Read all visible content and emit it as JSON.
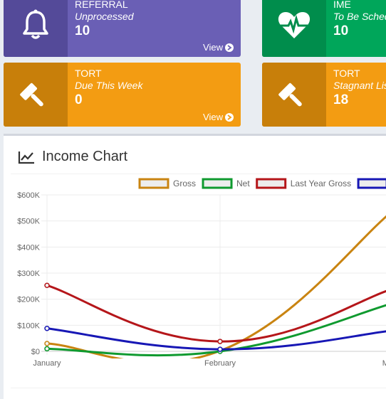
{
  "tiles": [
    {
      "category": "REFERRAL",
      "subtitle": "Unprocessed",
      "count": "10",
      "view_label": "View",
      "bg": "#6a5fb5",
      "icon_bg": "#544a99",
      "icon": "bell-icon"
    },
    {
      "category": "IME",
      "subtitle": "To Be Scheduled",
      "count": "10",
      "view_label": "View",
      "bg": "#00a65a",
      "icon_bg": "#008d4c",
      "icon": "heartbeat-icon"
    },
    {
      "category": "TORT",
      "subtitle": "Due This Week",
      "count": "0",
      "view_label": "View",
      "bg": "#f39c12",
      "icon_bg": "#c87f0a",
      "icon": "gavel-icon"
    },
    {
      "category": "TORT",
      "subtitle": "Stagnant List",
      "count": "18",
      "view_label": "View",
      "bg": "#f39c12",
      "icon_bg": "#c87f0a",
      "icon": "gavel-icon"
    }
  ],
  "panel": {
    "title": "Income Chart",
    "icon": "line-chart-icon"
  },
  "chart_data": {
    "type": "line",
    "categories": [
      "January",
      "February",
      "March"
    ],
    "ylim": [
      0,
      600000
    ],
    "y_ticks": [
      "$0",
      "$100K",
      "$200K",
      "$300K",
      "$400K",
      "$500K",
      "$600K"
    ],
    "grid": true,
    "legend": "top",
    "series": [
      {
        "name": "Gross",
        "color": "#c98411",
        "values": [
          30000,
          2000,
          540000
        ]
      },
      {
        "name": "Net",
        "color": "#0f9a2f",
        "values": [
          10000,
          0,
          185000
        ]
      },
      {
        "name": "Last Year Gross",
        "color": "#b5161a",
        "values": [
          253000,
          38000,
          240000
        ]
      },
      {
        "name": "",
        "color": "#1717b5",
        "values": [
          88000,
          8000,
          80000
        ]
      }
    ]
  }
}
